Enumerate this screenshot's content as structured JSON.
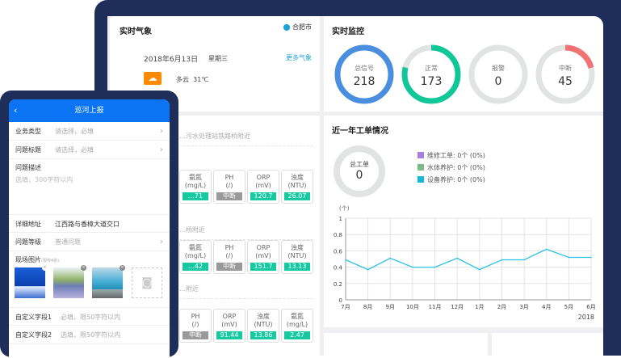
{
  "weather": {
    "title": "实时气象",
    "city": "合肥市",
    "date": "2018年6月13日",
    "weekday": "星期三",
    "more": "更多气象",
    "condition": "多云",
    "temp": "31℃",
    "icon": "partly-cloudy-icon"
  },
  "monitor": {
    "title": "实时监控",
    "gauges": [
      {
        "label": "总信号",
        "value": "218",
        "color": "#4a8ee0",
        "fraction": 1
      },
      {
        "label": "正常",
        "value": "173",
        "color": "#10c79a",
        "fraction": 0.79
      },
      {
        "label": "报警",
        "value": "0",
        "color": "#e0e0e0",
        "fraction": 0
      },
      {
        "label": "中断",
        "value": "45",
        "color": "#f07272",
        "fraction": 0.21
      }
    ]
  },
  "stations": [
    {
      "name": "…污水处理站铁路桥附近",
      "tiles": [
        {
          "n": "氨氮",
          "u": "(mg/L)",
          "v": "…71",
          "off": false
        },
        {
          "n": "PH",
          "u": "(/)",
          "v": "中断",
          "off": true
        },
        {
          "n": "ORP",
          "u": "(mV)",
          "v": "120.7",
          "off": false
        },
        {
          "n": "浊度",
          "u": "(NTU)",
          "v": "26.07",
          "off": false
        }
      ]
    },
    {
      "name": "…桥附近",
      "tiles": [
        {
          "n": "氨氮",
          "u": "(mg/L)",
          "v": "…42",
          "off": false
        },
        {
          "n": "PH",
          "u": "(/)",
          "v": "中断",
          "off": true
        },
        {
          "n": "ORP",
          "u": "(mV)",
          "v": "151.7",
          "off": false
        },
        {
          "n": "浊度",
          "u": "(NTU)",
          "v": "13.13",
          "off": false
        }
      ]
    },
    {
      "name": "…附近",
      "tiles": [
        {
          "n": "PH",
          "u": "(/)",
          "v": "中断",
          "off": true
        },
        {
          "n": "ORP",
          "u": "(mV)",
          "v": "91.44",
          "off": false
        },
        {
          "n": "浊度",
          "u": "(NTU)",
          "v": "13.86",
          "off": false
        },
        {
          "n": "氨氮",
          "u": "(mg/L)",
          "v": "2.47",
          "off": false
        }
      ]
    }
  ],
  "orders": {
    "title": "近一年工单情况",
    "total_label": "总工单",
    "total": "0",
    "legend": [
      {
        "label": "维修工单:",
        "value": "0个 (0%)",
        "color": "#a67ee0"
      },
      {
        "label": "水体养护:",
        "value": "0个 (0%)",
        "color": "#7dbb86"
      },
      {
        "label": "设备养护:",
        "value": "0个 (0%)",
        "color": "#14b8d8"
      }
    ]
  },
  "chart_data": {
    "type": "line",
    "ylabel": "(个)",
    "categories": [
      "7月",
      "8月",
      "9月",
      "10月",
      "11月",
      "12月",
      "1月",
      "2月",
      "3月",
      "4月",
      "5月",
      "6月"
    ],
    "x_extra": "2018",
    "values": [
      0.49,
      0.37,
      0.51,
      0.4,
      0.4,
      0.51,
      0.37,
      0.49,
      0.49,
      0.62,
      0.52,
      0.52
    ],
    "ylim": [
      0,
      1
    ],
    "yticks": [
      "0",
      "0.2",
      "0.4",
      "0.6",
      "0.8",
      "1"
    ],
    "grid": true,
    "color": "#2ec4e6"
  },
  "phone": {
    "title": "巡河上报",
    "rows": [
      {
        "label": "业务类型",
        "value": "请选择，必填",
        "chev": true
      },
      {
        "label": "问题标题",
        "value": "请选择，必填",
        "chev": true
      }
    ],
    "desc_label": "问题描述",
    "desc_placeholder": "选填，300字符以内",
    "addr_label": "详细地址",
    "addr_value": "江西路与香樟大道交口",
    "level_label": "问题等级",
    "level_value": "普通问题",
    "photos_label": "现场图片",
    "photos_hint": "(限传4张)",
    "custom1_label": "自定义字段1",
    "custom1_placeholder": "必填，限50字符以内",
    "custom2_label": "自定义字段2",
    "custom2_placeholder": "选填，限50字符以内"
  }
}
